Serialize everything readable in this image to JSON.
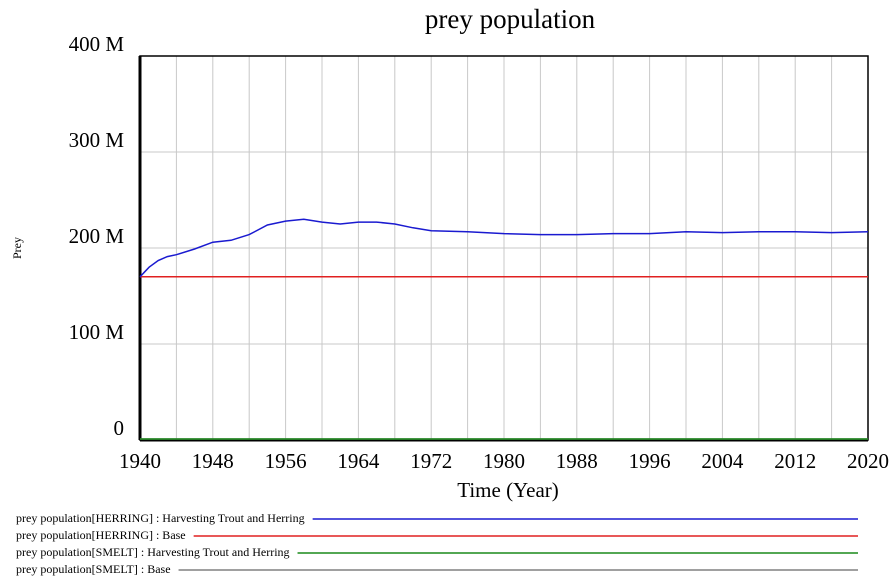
{
  "chart_data": {
    "type": "line",
    "title": "prey population",
    "y_label": "Prey",
    "x_label": "Time (Year)",
    "xlim": [
      1940,
      2020
    ],
    "xticks": [
      1940,
      1948,
      1956,
      1964,
      1972,
      1980,
      1988,
      1996,
      2004,
      2012,
      2020
    ],
    "minor_xticks": [
      1944,
      1952,
      1960,
      1968,
      1976,
      1984,
      1992,
      2000,
      2008,
      2016
    ],
    "ylim": [
      0,
      400
    ],
    "yticks": [
      0,
      {
        "value": 100,
        "label": "100 M"
      },
      {
        "value": 200,
        "label": "200 M"
      },
      {
        "value": 300,
        "label": "300 M"
      },
      {
        "value": 400,
        "label": "400 M"
      }
    ],
    "grid": true,
    "legend": "bottom",
    "x": [
      1940,
      1941,
      1942,
      1943,
      1944,
      1946,
      1948,
      1950,
      1952,
      1954,
      1956,
      1958,
      1960,
      1962,
      1964,
      1966,
      1968,
      1970,
      1972,
      1976,
      1980,
      1984,
      1988,
      1992,
      1996,
      2000,
      2004,
      2008,
      2012,
      2016,
      2020
    ],
    "series": [
      {
        "name": "prey population[HERRING] : Harvesting Trout and Herring",
        "color": "#1a1ad0",
        "values": [
          170,
          180,
          187,
          191,
          193,
          199,
          206,
          208,
          214,
          224,
          228,
          230,
          227,
          225,
          227,
          227,
          225,
          221,
          218,
          217,
          215,
          214,
          214,
          215,
          215,
          217,
          216,
          217,
          217,
          216,
          217
        ]
      },
      {
        "name": "prey population[HERRING] : Base",
        "color": "#e02020",
        "values": [
          170,
          170,
          170,
          170,
          170,
          170,
          170,
          170,
          170,
          170,
          170,
          170,
          170,
          170,
          170,
          170,
          170,
          170,
          170,
          170,
          170,
          170,
          170,
          170,
          170,
          170,
          170,
          170,
          170,
          170,
          170
        ]
      },
      {
        "name": "prey population[SMELT] : Harvesting Trout and Herring",
        "color": "#1a8a1a",
        "values": [
          1,
          1,
          1,
          1,
          1,
          1,
          1,
          1,
          1,
          1,
          1,
          1,
          1,
          1,
          1,
          1,
          1,
          1,
          1,
          1,
          1,
          1,
          1,
          1,
          1,
          1,
          1,
          1,
          1,
          1,
          1
        ]
      },
      {
        "name": "prey population[SMELT] : Base",
        "color": "#808080",
        "values": [
          1,
          1,
          1,
          1,
          1,
          1,
          1,
          1,
          1,
          1,
          1,
          1,
          1,
          1,
          1,
          1,
          1,
          1,
          1,
          1,
          1,
          1,
          1,
          1,
          1,
          1,
          1,
          1,
          1,
          1,
          1
        ]
      }
    ]
  }
}
